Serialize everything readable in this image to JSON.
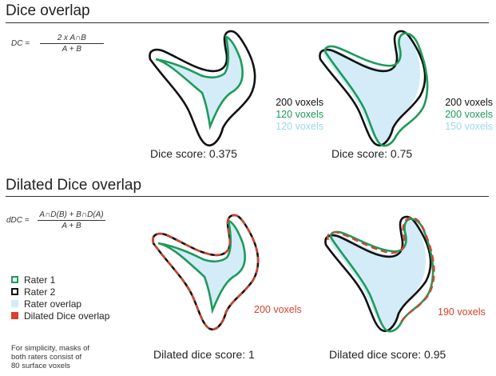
{
  "colors": {
    "rater1": "#1e9a5b",
    "rater2": "#111111",
    "overlap": "#d3ecf7",
    "dilated": "#d9412b",
    "overlap_text": "#9fd6ea"
  },
  "dice": {
    "heading": "Dice overlap",
    "formula": {
      "lhs": "DC  =",
      "numerator": "2 x A∩B",
      "denominator": "A + B"
    },
    "panels": [
      {
        "counts": [
          "200 voxels",
          "120 voxels",
          "120 voxels"
        ],
        "score": "Dice score: 0.375"
      },
      {
        "counts": [
          "200 voxels",
          "200 voxels",
          "150 voxels"
        ],
        "score": "Dice score: 0.75"
      }
    ]
  },
  "dilated": {
    "heading": "Dilated Dice overlap",
    "formula": {
      "lhs": "dDC =",
      "numerator": "A∩D(B) +  B∩D(A)",
      "denominator": "A + B"
    },
    "panels": [
      {
        "voxels": "200 voxels",
        "score": "Dilated dice score: 1"
      },
      {
        "voxels": "190 voxels",
        "score": "Dilated dice score: 0.95"
      }
    ]
  },
  "legend": {
    "items": [
      {
        "label": "Rater 1",
        "icon": "green-outline-square"
      },
      {
        "label": "Rater 2",
        "icon": "black-outline-square"
      },
      {
        "label": "Rater overlap",
        "icon": "light-blue-square"
      },
      {
        "label": "Dilated Dice overlap",
        "icon": "red-square"
      }
    ],
    "note": "For simplicity, masks of both raters consist of 80 surface voxels"
  }
}
